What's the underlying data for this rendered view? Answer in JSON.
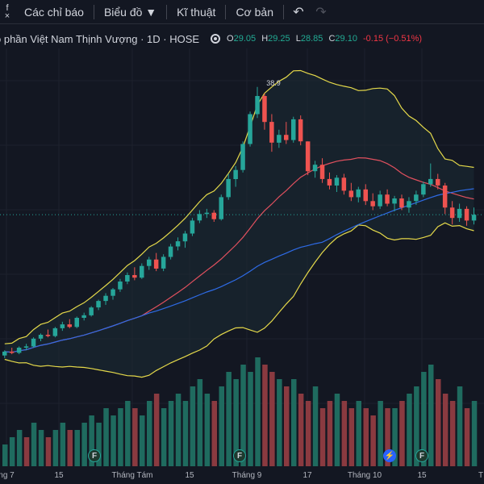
{
  "toolbar": {
    "indicators_label": "Các chỉ báo",
    "chart_type_label": "Biểu đồ ▼",
    "technical_label": "Kĩ thuật",
    "fundamental_label": "Cơ bản",
    "undo_icon": "↶",
    "redo_icon": "↷"
  },
  "legend": {
    "symbol_title": "o phần Việt Nam Thịnh Vượng · 1D · HOSE",
    "open_key": "O",
    "open_val": "29.05",
    "high_key": "H",
    "high_val": "29.25",
    "low_key": "L",
    "low_val": "28.85",
    "close_key": "C",
    "close_val": "29.10",
    "change": "-0.15 (−0.51%)"
  },
  "colors": {
    "up": "#26a69a",
    "down": "#ef5350",
    "bb_band": "#e5d94a",
    "ma_red": "#e0505e",
    "ma_blue": "#2e6be6",
    "background": "#131722"
  },
  "annotations": {
    "high_label": "38.9"
  },
  "xaxis": {
    "ticks": [
      "ng 7",
      "15",
      "Tháng Tám",
      "15",
      "Tháng 9",
      "17",
      "Tháng 10",
      "15",
      "T"
    ]
  },
  "events": [
    {
      "icon": "F",
      "kind": "financial"
    },
    {
      "icon": "F",
      "kind": "financial"
    },
    {
      "icon": "⚡",
      "kind": "split"
    },
    {
      "icon": "F",
      "kind": "financial"
    }
  ],
  "chart_data": {
    "type": "candlestick",
    "series": [
      {
        "o": 18.2,
        "h": 18.6,
        "l": 18.0,
        "c": 18.5
      },
      {
        "o": 18.5,
        "h": 18.8,
        "l": 18.3,
        "c": 18.4
      },
      {
        "o": 18.4,
        "h": 18.9,
        "l": 18.3,
        "c": 18.8
      },
      {
        "o": 18.8,
        "h": 19.1,
        "l": 18.6,
        "c": 18.9
      },
      {
        "o": 18.9,
        "h": 19.6,
        "l": 18.8,
        "c": 19.5
      },
      {
        "o": 19.5,
        "h": 19.9,
        "l": 19.3,
        "c": 19.8
      },
      {
        "o": 19.8,
        "h": 20.2,
        "l": 19.6,
        "c": 19.7
      },
      {
        "o": 19.7,
        "h": 20.4,
        "l": 19.6,
        "c": 20.3
      },
      {
        "o": 20.3,
        "h": 20.8,
        "l": 20.1,
        "c": 20.6
      },
      {
        "o": 20.6,
        "h": 21.0,
        "l": 20.3,
        "c": 20.4
      },
      {
        "o": 20.4,
        "h": 21.2,
        "l": 20.3,
        "c": 21.1
      },
      {
        "o": 21.1,
        "h": 21.5,
        "l": 20.9,
        "c": 21.3
      },
      {
        "o": 21.3,
        "h": 22.0,
        "l": 21.2,
        "c": 21.9
      },
      {
        "o": 21.9,
        "h": 22.5,
        "l": 21.7,
        "c": 22.4
      },
      {
        "o": 22.4,
        "h": 23.0,
        "l": 22.1,
        "c": 22.8
      },
      {
        "o": 22.8,
        "h": 23.4,
        "l": 22.5,
        "c": 23.3
      },
      {
        "o": 23.3,
        "h": 24.1,
        "l": 23.1,
        "c": 23.9
      },
      {
        "o": 23.9,
        "h": 24.6,
        "l": 23.7,
        "c": 24.4
      },
      {
        "o": 24.4,
        "h": 25.0,
        "l": 24.0,
        "c": 24.2
      },
      {
        "o": 24.2,
        "h": 25.3,
        "l": 24.1,
        "c": 25.1
      },
      {
        "o": 25.1,
        "h": 25.8,
        "l": 24.8,
        "c": 25.6
      },
      {
        "o": 25.6,
        "h": 26.1,
        "l": 24.7,
        "c": 24.9
      },
      {
        "o": 24.9,
        "h": 26.0,
        "l": 24.7,
        "c": 25.8
      },
      {
        "o": 25.8,
        "h": 26.8,
        "l": 25.6,
        "c": 26.6
      },
      {
        "o": 26.6,
        "h": 27.3,
        "l": 26.3,
        "c": 27.0
      },
      {
        "o": 27.0,
        "h": 27.8,
        "l": 26.5,
        "c": 27.6
      },
      {
        "o": 27.6,
        "h": 28.8,
        "l": 27.4,
        "c": 28.6
      },
      {
        "o": 28.6,
        "h": 29.4,
        "l": 28.4,
        "c": 29.1
      },
      {
        "o": 29.1,
        "h": 29.5,
        "l": 28.8,
        "c": 29.2
      },
      {
        "o": 29.2,
        "h": 29.4,
        "l": 28.5,
        "c": 28.7
      },
      {
        "o": 28.7,
        "h": 30.6,
        "l": 28.6,
        "c": 30.4
      },
      {
        "o": 30.4,
        "h": 32.2,
        "l": 30.2,
        "c": 31.8
      },
      {
        "o": 31.8,
        "h": 32.8,
        "l": 31.2,
        "c": 32.5
      },
      {
        "o": 32.5,
        "h": 34.7,
        "l": 32.3,
        "c": 34.5
      },
      {
        "o": 34.5,
        "h": 37.0,
        "l": 34.3,
        "c": 36.8
      },
      {
        "o": 36.8,
        "h": 38.9,
        "l": 36.5,
        "c": 38.2
      },
      {
        "o": 38.2,
        "h": 38.4,
        "l": 35.6,
        "c": 36.2
      },
      {
        "o": 36.2,
        "h": 36.8,
        "l": 33.9,
        "c": 34.6
      },
      {
        "o": 34.6,
        "h": 35.6,
        "l": 34.2,
        "c": 35.2
      },
      {
        "o": 35.2,
        "h": 36.2,
        "l": 34.5,
        "c": 34.8
      },
      {
        "o": 34.8,
        "h": 36.6,
        "l": 34.6,
        "c": 36.4
      },
      {
        "o": 36.4,
        "h": 36.7,
        "l": 34.4,
        "c": 34.7
      },
      {
        "o": 34.7,
        "h": 33.6,
        "l": 32.1,
        "c": 32.4
      },
      {
        "o": 32.4,
        "h": 33.2,
        "l": 31.9,
        "c": 32.9
      },
      {
        "o": 32.9,
        "h": 33.4,
        "l": 31.5,
        "c": 31.8
      },
      {
        "o": 31.8,
        "h": 32.3,
        "l": 31.0,
        "c": 31.3
      },
      {
        "o": 31.3,
        "h": 32.1,
        "l": 30.8,
        "c": 31.9
      },
      {
        "o": 31.9,
        "h": 32.2,
        "l": 30.6,
        "c": 30.9
      },
      {
        "o": 30.9,
        "h": 31.5,
        "l": 30.1,
        "c": 30.4
      },
      {
        "o": 30.4,
        "h": 31.2,
        "l": 30.0,
        "c": 31.0
      },
      {
        "o": 31.0,
        "h": 31.4,
        "l": 29.8,
        "c": 30.1
      },
      {
        "o": 30.1,
        "h": 30.7,
        "l": 29.4,
        "c": 29.7
      },
      {
        "o": 29.7,
        "h": 30.9,
        "l": 29.5,
        "c": 30.6
      },
      {
        "o": 30.6,
        "h": 31.0,
        "l": 29.7,
        "c": 29.9
      },
      {
        "o": 29.9,
        "h": 30.5,
        "l": 29.3,
        "c": 30.3
      },
      {
        "o": 30.3,
        "h": 30.6,
        "l": 29.4,
        "c": 29.6
      },
      {
        "o": 29.6,
        "h": 30.4,
        "l": 29.2,
        "c": 30.1
      },
      {
        "o": 30.1,
        "h": 30.9,
        "l": 29.8,
        "c": 30.6
      },
      {
        "o": 30.6,
        "h": 31.6,
        "l": 30.4,
        "c": 31.4
      },
      {
        "o": 31.4,
        "h": 33.0,
        "l": 31.2,
        "c": 31.8
      },
      {
        "o": 31.8,
        "h": 32.2,
        "l": 31.0,
        "c": 31.3
      },
      {
        "o": 31.3,
        "h": 31.5,
        "l": 29.1,
        "c": 29.6
      },
      {
        "o": 29.6,
        "h": 30.1,
        "l": 28.3,
        "c": 28.8
      },
      {
        "o": 28.8,
        "h": 29.9,
        "l": 28.5,
        "c": 29.5
      },
      {
        "o": 29.5,
        "h": 29.7,
        "l": 28.2,
        "c": 28.6
      },
      {
        "o": 28.6,
        "h": 29.6,
        "l": 28.3,
        "c": 29.05
      }
    ],
    "volume_up": [
      true,
      true,
      true,
      false,
      true,
      true,
      false,
      true,
      true,
      false,
      true,
      true,
      true,
      true,
      true,
      true,
      true,
      true,
      false,
      true,
      true,
      false,
      true,
      true,
      true,
      true,
      true,
      true,
      true,
      false,
      true,
      true,
      true,
      true,
      true,
      true,
      false,
      false,
      true,
      false,
      true,
      false,
      false,
      true,
      false,
      false,
      true,
      false,
      false,
      true,
      false,
      false,
      true,
      false,
      true,
      false,
      true,
      true,
      true,
      true,
      false,
      false,
      false,
      true,
      false,
      true
    ],
    "volume": [
      3,
      4,
      5,
      4,
      6,
      5,
      4,
      5,
      6,
      5,
      5,
      6,
      7,
      6,
      8,
      7,
      8,
      9,
      8,
      7,
      9,
      10,
      8,
      9,
      10,
      9,
      11,
      12,
      10,
      9,
      11,
      13,
      12,
      14,
      13,
      15,
      14,
      13,
      12,
      11,
      12,
      10,
      9,
      11,
      8,
      9,
      10,
      9,
      8,
      9,
      8,
      7,
      9,
      8,
      8,
      9,
      10,
      11,
      13,
      14,
      12,
      10,
      9,
      11,
      8,
      9
    ]
  }
}
